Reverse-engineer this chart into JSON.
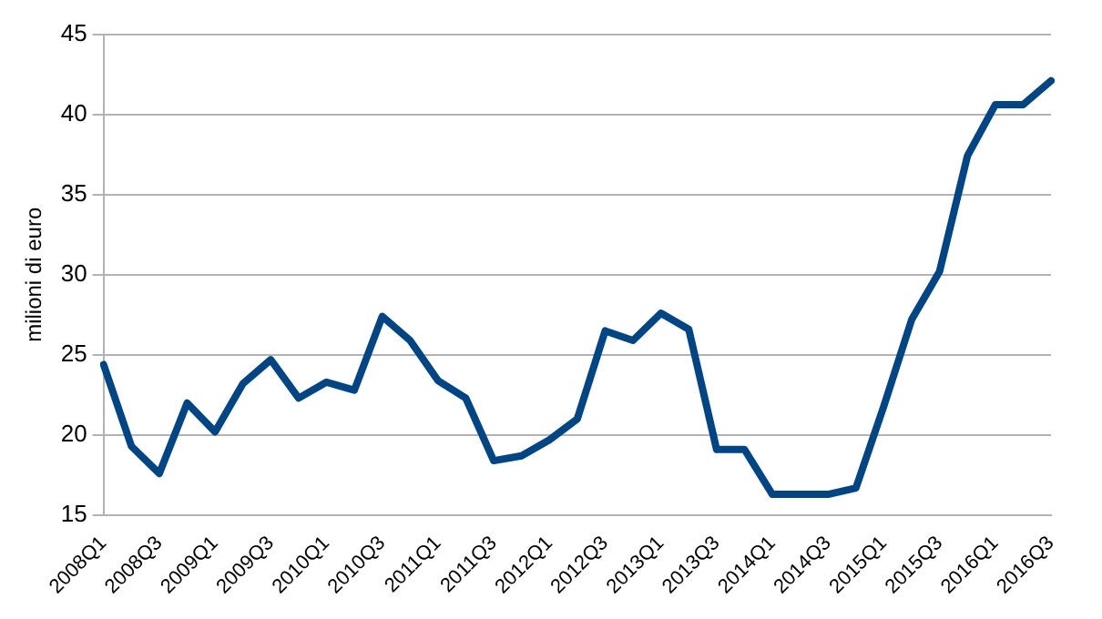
{
  "chart_data": {
    "type": "line",
    "ylabel": "milioni di euro",
    "categories": [
      "2008Q1",
      null,
      "2008Q3",
      null,
      "2009Q1",
      null,
      "2009Q3",
      null,
      "2010Q1",
      null,
      "2010Q3",
      null,
      "2011Q1",
      null,
      "2011Q3",
      null,
      "2012Q1",
      null,
      "2012Q3",
      null,
      "2013Q1",
      null,
      "2013Q3",
      null,
      "2014Q1",
      null,
      "2014Q3",
      null,
      "2015Q1",
      null,
      "2015Q3",
      null,
      "2016Q1",
      null,
      "2016Q3"
    ],
    "series": [
      {
        "color": "#004586",
        "values": [
          24.4,
          19.3,
          17.6,
          22.0,
          20.2,
          23.2,
          24.7,
          22.3,
          23.3,
          22.8,
          27.4,
          25.9,
          23.4,
          22.3,
          18.4,
          18.7,
          19.7,
          21.0,
          26.5,
          25.9,
          27.6,
          26.6,
          19.1,
          19.1,
          16.3,
          16.3,
          16.3,
          16.7,
          21.8,
          27.2,
          30.2,
          37.4,
          40.6,
          40.6,
          42.1
        ]
      }
    ],
    "ylim": [
      15,
      45
    ],
    "yticks": [
      15,
      20,
      25,
      30,
      35,
      40,
      45
    ],
    "grid": "y",
    "legend": false,
    "marker": "none",
    "line_style": "solid"
  }
}
